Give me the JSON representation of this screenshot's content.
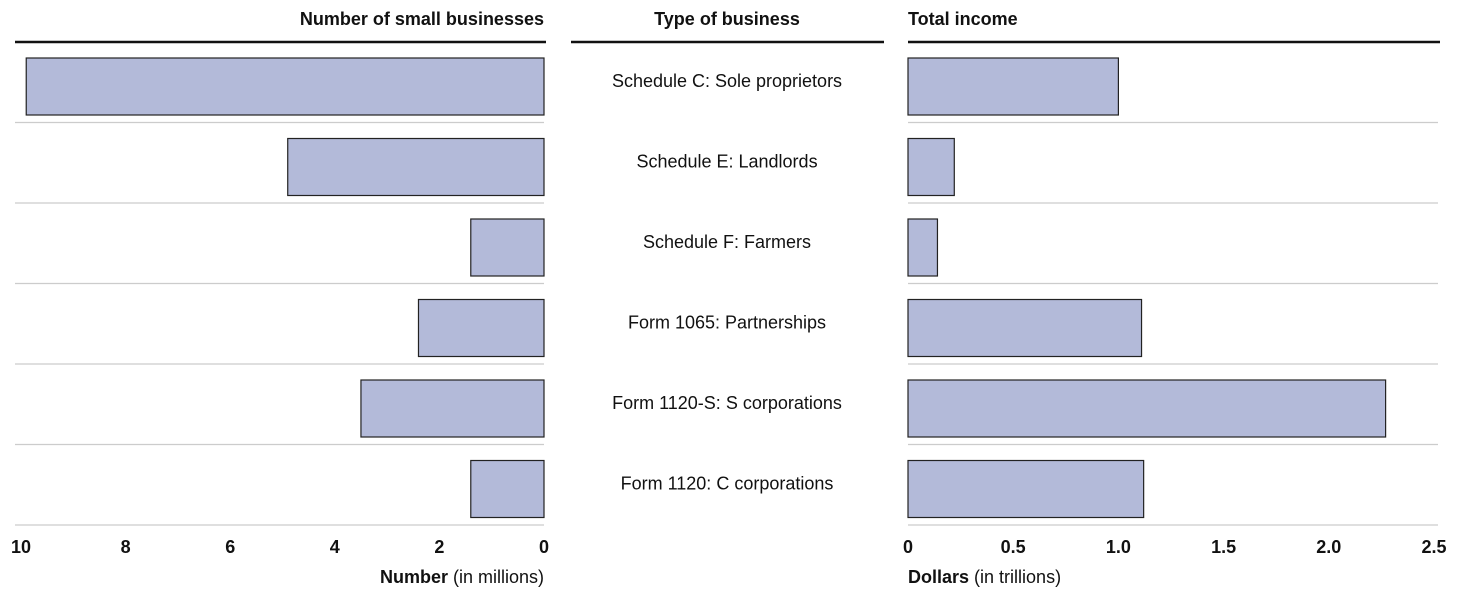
{
  "chart_data": [
    {
      "type": "barh",
      "title": "Number of small businesses",
      "category_title": "Type of business",
      "categories": [
        "Schedule C: Sole proprietors",
        "Schedule E: Landlords",
        "Schedule F: Farmers",
        "Form 1065: Partnerships",
        "Form 1120-S: S corporations",
        "Form 1120: C corporations"
      ],
      "values": [
        9.9,
        4.9,
        1.4,
        2.4,
        3.5,
        1.4
      ],
      "xlabel": "Number",
      "xlabel_unit": "(in millions)",
      "xlim": [
        0,
        10
      ],
      "xticks": [
        0,
        2,
        4,
        6,
        8,
        10
      ],
      "x_inverted": true,
      "color": "#b3bad9"
    },
    {
      "type": "barh",
      "title": "Total income",
      "values": [
        1.0,
        0.22,
        0.14,
        1.11,
        2.27,
        1.12
      ],
      "xlabel": "Dollars",
      "xlabel_unit": "(in trillions)",
      "xlim": [
        0,
        2.5
      ],
      "xticks": [
        0,
        0.5,
        {
          "value": 1,
          "label": "1.0"
        },
        1.5,
        {
          "value": 2,
          "label": "2.0"
        },
        2.5
      ],
      "x_inverted": false,
      "color": "#b3bad9"
    }
  ]
}
